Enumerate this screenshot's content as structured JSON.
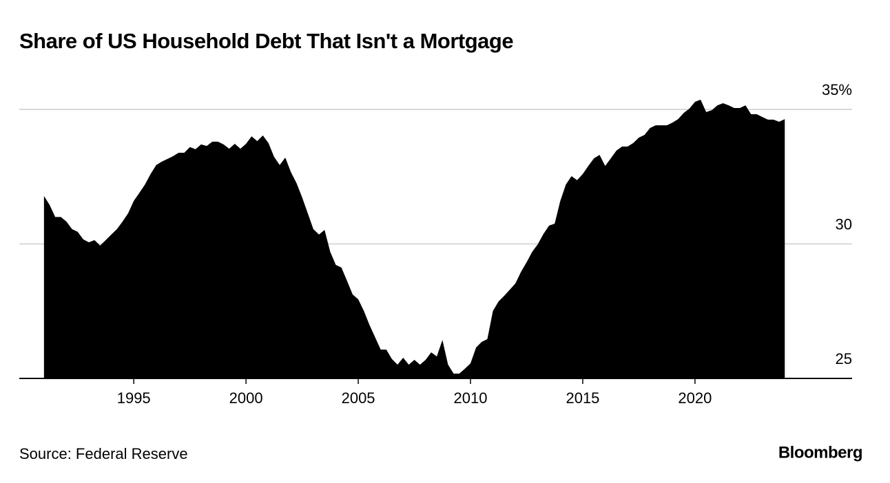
{
  "chart_data": {
    "type": "area",
    "title": "Share of US Household Debt That Isn't a Mortgage",
    "source": "Source: Federal Reserve",
    "logo": "Bloomberg",
    "color": "#000000",
    "grid": true,
    "x": [
      1991.0,
      1991.25,
      1991.5,
      1991.75,
      1992.0,
      1992.25,
      1992.5,
      1992.75,
      1993.0,
      1993.25,
      1993.5,
      1993.75,
      1994.0,
      1994.25,
      1994.5,
      1994.75,
      1995.0,
      1995.25,
      1995.5,
      1995.75,
      1996.0,
      1996.25,
      1996.5,
      1996.75,
      1997.0,
      1997.25,
      1997.5,
      1997.75,
      1998.0,
      1998.25,
      1998.5,
      1998.75,
      1999.0,
      1999.25,
      1999.5,
      1999.75,
      2000.0,
      2000.25,
      2000.5,
      2000.75,
      2001.0,
      2001.25,
      2001.5,
      2001.75,
      2002.0,
      2002.25,
      2002.5,
      2002.75,
      2003.0,
      2003.25,
      2003.5,
      2003.75,
      2004.0,
      2004.25,
      2004.5,
      2004.75,
      2005.0,
      2005.25,
      2005.5,
      2005.75,
      2006.0,
      2006.25,
      2006.5,
      2006.75,
      2007.0,
      2007.25,
      2007.5,
      2007.75,
      2008.0,
      2008.25,
      2008.5,
      2008.75,
      2009.0,
      2009.25,
      2009.5,
      2009.75,
      2010.0,
      2010.25,
      2010.5,
      2010.75,
      2011.0,
      2011.25,
      2011.5,
      2011.75,
      2012.0,
      2012.25,
      2012.5,
      2012.75,
      2013.0,
      2013.25,
      2013.5,
      2013.75,
      2014.0,
      2014.25,
      2014.5,
      2014.75,
      2015.0,
      2015.25,
      2015.5,
      2015.75,
      2016.0,
      2016.25,
      2016.5,
      2016.75,
      2017.0,
      2017.25,
      2017.5,
      2017.75,
      2018.0,
      2018.25,
      2018.5,
      2018.75,
      2019.0,
      2019.25,
      2019.5,
      2019.75,
      2020.0,
      2020.25,
      2020.5,
      2020.75,
      2021.0,
      2021.25,
      2021.5,
      2021.75,
      2022.0,
      2022.25,
      2022.5,
      2022.75,
      2023.0,
      2023.25,
      2023.5,
      2023.75,
      2024.0
    ],
    "values": [
      31.78,
      31.45,
      31.0,
      31.0,
      30.83,
      30.55,
      30.45,
      30.17,
      30.06,
      30.14,
      29.94,
      30.14,
      30.35,
      30.55,
      30.83,
      31.14,
      31.6,
      31.9,
      32.21,
      32.6,
      32.93,
      33.06,
      33.16,
      33.26,
      33.39,
      33.39,
      33.6,
      33.52,
      33.7,
      33.64,
      33.8,
      33.8,
      33.7,
      33.54,
      33.72,
      33.54,
      33.72,
      34.0,
      33.82,
      34.03,
      33.75,
      33.24,
      32.93,
      33.21,
      32.67,
      32.26,
      31.73,
      31.14,
      30.55,
      30.35,
      30.52,
      29.71,
      29.22,
      29.12,
      28.63,
      28.12,
      27.94,
      27.51,
      26.99,
      26.53,
      26.07,
      26.07,
      25.72,
      25.51,
      25.77,
      25.51,
      25.69,
      25.51,
      25.69,
      25.97,
      25.82,
      26.43,
      25.51,
      25.18,
      25.18,
      25.36,
      25.56,
      26.15,
      26.36,
      26.46,
      27.51,
      27.86,
      28.07,
      28.3,
      28.53,
      28.96,
      29.32,
      29.71,
      29.99,
      30.37,
      30.68,
      30.75,
      31.6,
      32.21,
      32.52,
      32.37,
      32.6,
      32.9,
      33.18,
      33.31,
      32.9,
      33.18,
      33.47,
      33.62,
      33.62,
      33.75,
      33.95,
      34.05,
      34.31,
      34.41,
      34.41,
      34.41,
      34.51,
      34.64,
      34.87,
      35.03,
      35.28,
      35.36,
      34.9,
      34.97,
      35.15,
      35.23,
      35.15,
      35.05,
      35.05,
      35.15,
      34.82,
      34.82,
      34.72,
      34.62,
      34.62,
      34.54,
      34.64
    ],
    "xlim": [
      1989.9,
      2027
    ],
    "xticks": [
      1995,
      2000,
      2005,
      2010,
      2015,
      2020
    ],
    "ylim": [
      25,
      35
    ],
    "yticks": [
      25,
      30,
      {
        "value": 35,
        "label": "35%"
      }
    ]
  }
}
